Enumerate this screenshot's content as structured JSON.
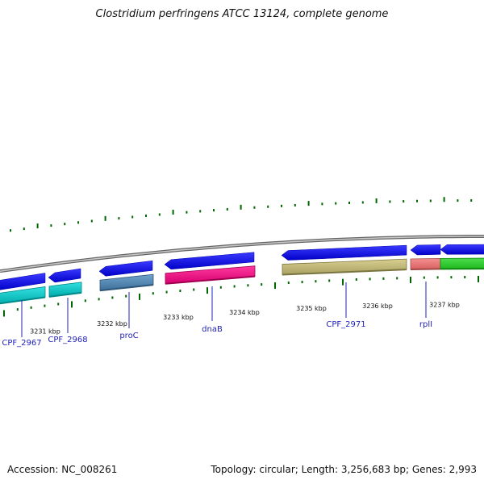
{
  "title": "Clostridium perfringens ATCC 13124, complete genome",
  "accession": "Accession: NC_008261",
  "topology": "Topology: circular; Length: 3,256,683 bp; Genes: 2,993",
  "colors": {
    "backbone": "#888888",
    "tick": "#006600",
    "feature_forward_top": "#0000dd",
    "label_line": "#2222bb"
  },
  "kbp_labels": [
    "3231 kbp",
    "3232 kbp",
    "3233 kbp",
    "3234 kbp",
    "3235 kbp",
    "3236 kbp",
    "3237 kbp"
  ],
  "gene_labels": [
    "CPF_2967",
    "CPF_2968",
    "proC",
    "dnaB",
    "CPF_2971",
    "rplI"
  ]
}
